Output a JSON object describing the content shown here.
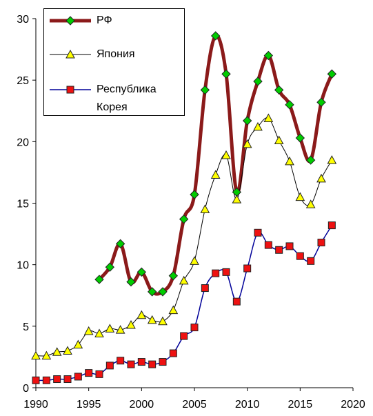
{
  "chart_data": {
    "type": "line",
    "x": [
      1990,
      1991,
      1992,
      1993,
      1994,
      1995,
      1996,
      1997,
      1998,
      1999,
      2000,
      2001,
      2002,
      2003,
      2004,
      2005,
      2006,
      2007,
      2008,
      2009,
      2010,
      2011,
      2012,
      2013,
      2014,
      2015,
      2016,
      2017,
      2018
    ],
    "series": [
      {
        "name": "РФ",
        "color": "#8b1a1a",
        "marker_color": "#00cc00",
        "marker": "diamond",
        "values": [
          null,
          null,
          null,
          null,
          null,
          null,
          8.8,
          9.8,
          11.7,
          8.6,
          9.4,
          7.8,
          7.8,
          9.1,
          13.7,
          15.7,
          24.2,
          28.6,
          25.5,
          15.9,
          21.7,
          24.9,
          27.0,
          24.2,
          23.0,
          20.3,
          18.5,
          23.2,
          25.5
        ]
      },
      {
        "name": "Япония",
        "color": "#000000",
        "marker_color": "#ffff00",
        "marker": "triangle",
        "values": [
          2.6,
          2.6,
          2.9,
          3.0,
          3.5,
          4.6,
          4.4,
          4.8,
          4.7,
          5.1,
          5.9,
          5.5,
          5.4,
          6.3,
          8.7,
          10.3,
          14.5,
          17.3,
          18.9,
          15.3,
          19.8,
          21.2,
          21.9,
          20.1,
          18.4,
          15.5,
          14.9,
          17.0,
          18.5
        ]
      },
      {
        "name": "Республика Корея",
        "color": "#000099",
        "marker_color": "#ee1111",
        "marker": "square",
        "values": [
          0.6,
          0.6,
          0.7,
          0.7,
          0.9,
          1.2,
          1.1,
          1.8,
          2.2,
          1.9,
          2.1,
          1.9,
          2.1,
          2.8,
          4.2,
          4.9,
          8.1,
          9.3,
          9.4,
          7.0,
          9.7,
          12.6,
          11.6,
          11.2,
          11.5,
          10.7,
          10.3,
          11.8,
          13.2
        ]
      }
    ],
    "xlim": [
      1990,
      2020
    ],
    "xticks": [
      1990,
      1995,
      2000,
      2005,
      2010,
      2015,
      2020
    ],
    "ylim": [
      0,
      30
    ],
    "yticks": [
      0,
      5,
      10,
      15,
      20,
      25,
      30
    ],
    "grid": false,
    "smooth": true,
    "legend": "upper left"
  }
}
